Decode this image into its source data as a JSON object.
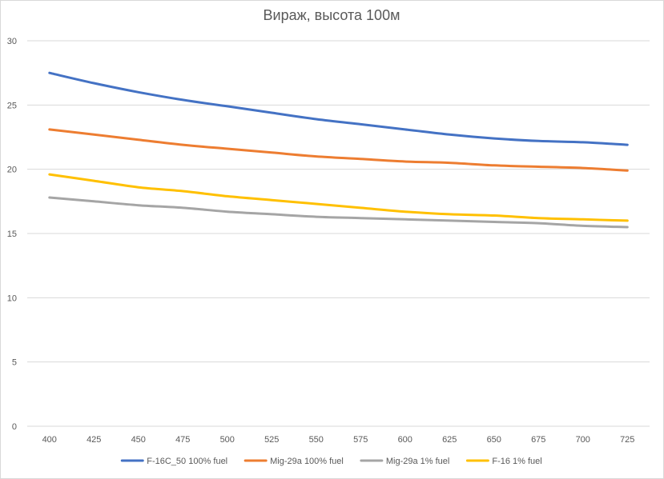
{
  "chart_data": {
    "type": "line",
    "title": "Вираж, высота 100м",
    "xlabel": "",
    "ylabel": "",
    "x": [
      400,
      425,
      450,
      475,
      500,
      525,
      550,
      575,
      600,
      625,
      650,
      675,
      700,
      725
    ],
    "xlim": [
      387.5,
      737.5
    ],
    "ylim": [
      0,
      30
    ],
    "ytick_step": 5,
    "grid": true,
    "legend_position": "bottom",
    "series": [
      {
        "name": "F-16C_50 100% fuel",
        "color": "#4472C4",
        "values": [
          27.5,
          26.7,
          26.0,
          25.4,
          24.9,
          24.4,
          23.9,
          23.5,
          23.1,
          22.7,
          22.4,
          22.2,
          22.1,
          21.9
        ]
      },
      {
        "name": "Mig-29a 100% fuel",
        "color": "#ED7D31",
        "values": [
          23.1,
          22.7,
          22.3,
          21.9,
          21.6,
          21.3,
          21.0,
          20.8,
          20.6,
          20.5,
          20.3,
          20.2,
          20.1,
          19.9
        ]
      },
      {
        "name": "Mig-29a 1% fuel",
        "color": "#A5A5A5",
        "values": [
          17.8,
          17.5,
          17.2,
          17.0,
          16.7,
          16.5,
          16.3,
          16.2,
          16.1,
          16.0,
          15.9,
          15.8,
          15.6,
          15.5
        ]
      },
      {
        "name": "F-16 1% fuel",
        "color": "#FFC000",
        "values": [
          19.6,
          19.1,
          18.6,
          18.3,
          17.9,
          17.6,
          17.3,
          17.0,
          16.7,
          16.5,
          16.4,
          16.2,
          16.1,
          16.0
        ]
      }
    ]
  }
}
